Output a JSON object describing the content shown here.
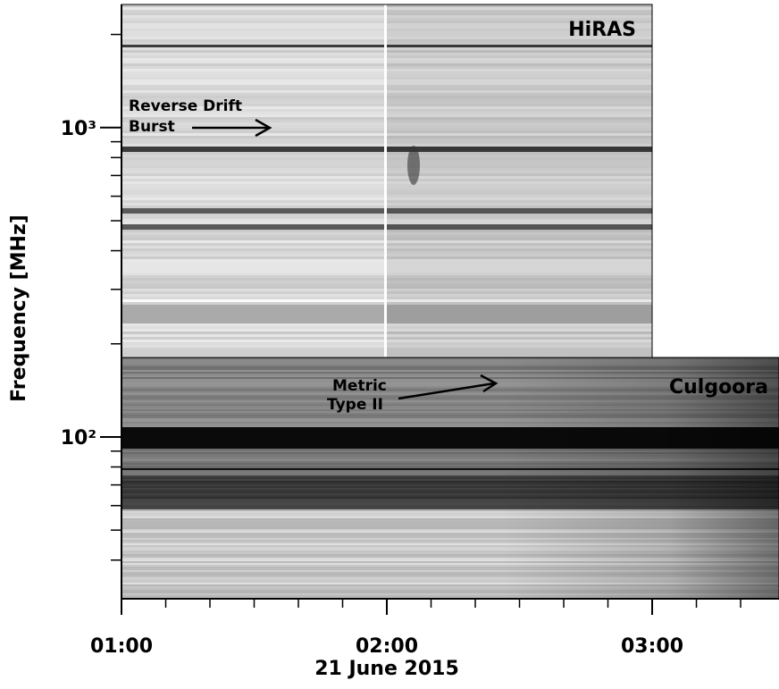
{
  "chart_data": {
    "type": "spectrogram",
    "xlabel": "21 June 2015",
    "ylabel": "Frequency [MHz]",
    "xlim": [
      1,
      3.478
    ],
    "xticks": [
      {
        "value": 1,
        "label": "01:00"
      },
      {
        "value": 2,
        "label": "02:00"
      },
      {
        "value": 3,
        "label": "03:00"
      }
    ],
    "xminorticks": [
      1.1667,
      1.3333,
      1.5,
      1.6667,
      1.8333,
      2.1667,
      2.3333,
      2.5,
      2.6667,
      2.8333,
      3.1667,
      3.3333
    ],
    "ylim": [
      30,
      2500
    ],
    "log_y": true,
    "yticks": [
      {
        "value": 100,
        "label": "10²"
      },
      {
        "value": 1000,
        "label": "10³"
      }
    ],
    "yminorticks": [
      40,
      50,
      60,
      70,
      80,
      90,
      200,
      300,
      400,
      500,
      600,
      700,
      800,
      900,
      2000
    ],
    "annotations": [
      {
        "text": "HiRAS"
      },
      {
        "text": "Culgoora"
      },
      {
        "lines": [
          "Reverse Drift",
          "Burst"
        ]
      },
      {
        "lines": [
          "Metric",
          "Type II"
        ]
      }
    ]
  }
}
